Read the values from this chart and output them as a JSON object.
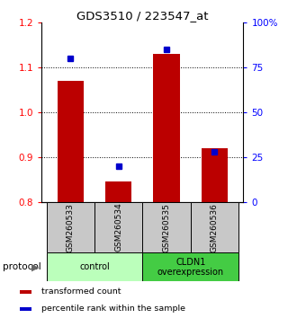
{
  "title": "GDS3510 / 223547_at",
  "samples": [
    "GSM260533",
    "GSM260534",
    "GSM260535",
    "GSM260536"
  ],
  "bar_values": [
    1.07,
    0.845,
    1.13,
    0.92
  ],
  "percentile_values": [
    80,
    20,
    85,
    28
  ],
  "ylim_left": [
    0.8,
    1.2
  ],
  "ylim_right": [
    0,
    100
  ],
  "yticks_left": [
    0.8,
    0.9,
    1.0,
    1.1,
    1.2
  ],
  "yticks_right": [
    0,
    25,
    50,
    75,
    100
  ],
  "ytick_labels_right": [
    "0",
    "25",
    "50",
    "75",
    "100%"
  ],
  "bar_color": "#bb0000",
  "marker_color": "#0000cc",
  "bar_bottom": 0.8,
  "groups": [
    {
      "label": "control",
      "samples": [
        0,
        1
      ],
      "color": "#bbffbb"
    },
    {
      "label": "CLDN1\noverexpression",
      "samples": [
        2,
        3
      ],
      "color": "#44cc44"
    }
  ],
  "protocol_label": "protocol",
  "legend_items": [
    {
      "color": "#bb0000",
      "label": "  transformed count"
    },
    {
      "color": "#0000cc",
      "label": "  percentile rank within the sample"
    }
  ],
  "grid_lines": [
    0.9,
    1.0,
    1.1
  ],
  "background_color": "#ffffff",
  "sample_box_color": "#c8c8c8"
}
